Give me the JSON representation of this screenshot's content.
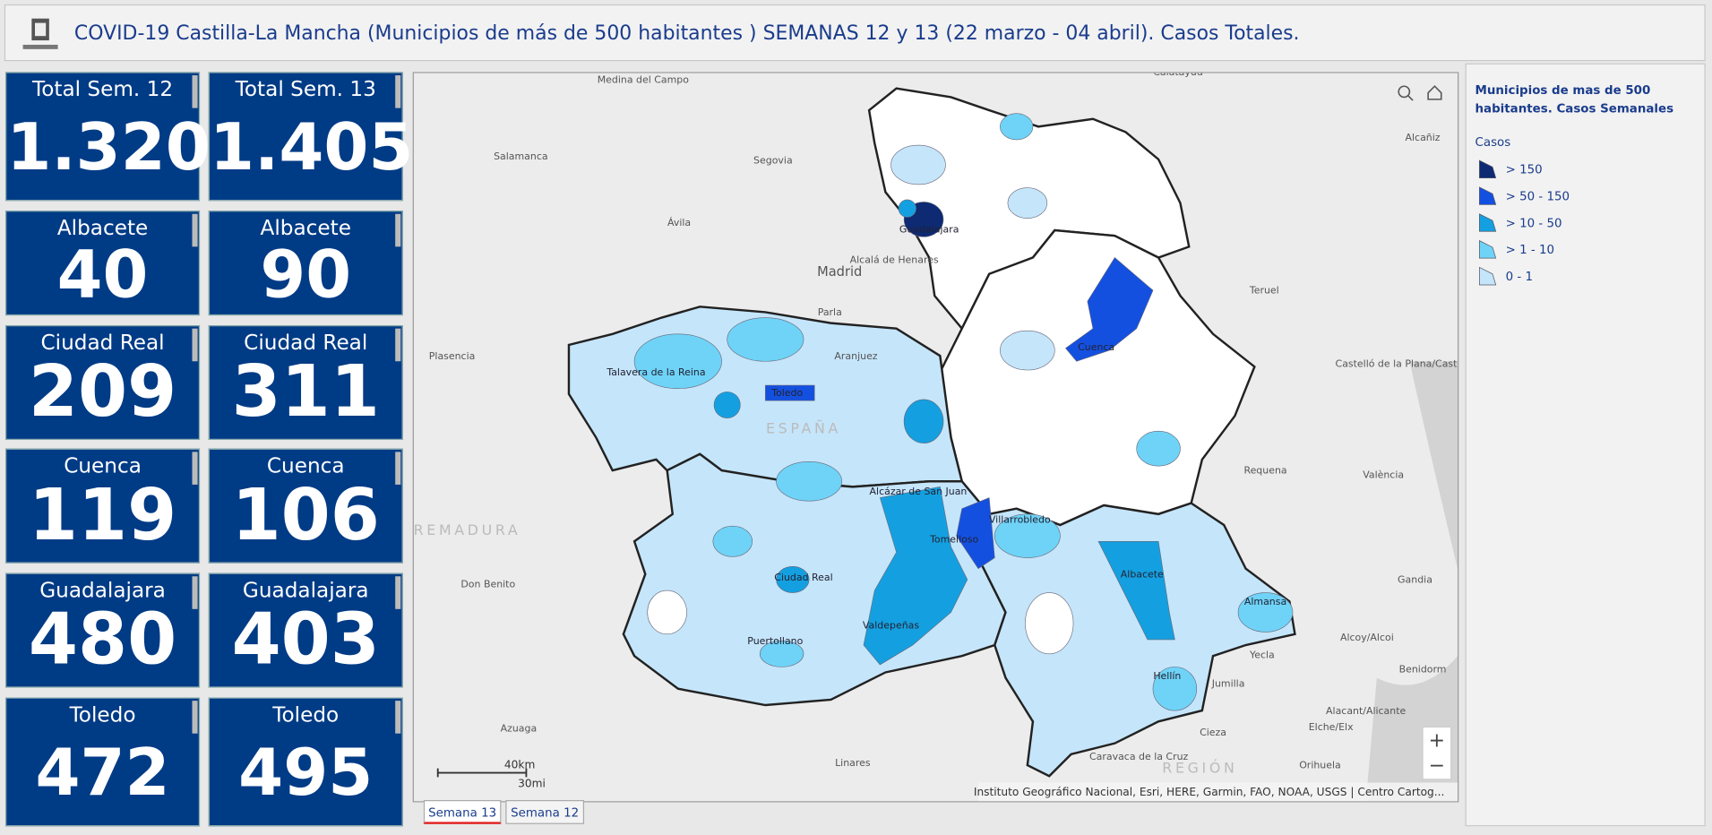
{
  "header": {
    "title": "COVID-19 Castilla-La Mancha (Municipios de más de 500 habitantes ) SEMANAS 12 y 13 (22 marzo - 04 abril). Casos Totales."
  },
  "tiles": {
    "week12": [
      {
        "label": "Total Sem. 12",
        "value": "1.320"
      },
      {
        "label": "Albacete",
        "value": "40"
      },
      {
        "label": "Ciudad Real",
        "value": "209"
      },
      {
        "label": "Cuenca",
        "value": "119"
      },
      {
        "label": "Guadalajara",
        "value": "480"
      },
      {
        "label": "Toledo",
        "value": "472"
      }
    ],
    "week13": [
      {
        "label": "Total Sem. 13",
        "value": "1.405"
      },
      {
        "label": "Albacete",
        "value": "90"
      },
      {
        "label": "Ciudad Real",
        "value": "311"
      },
      {
        "label": "Cuenca",
        "value": "106"
      },
      {
        "label": "Guadalajara",
        "value": "403"
      },
      {
        "label": "Toledo",
        "value": "495"
      }
    ]
  },
  "map": {
    "labels": [
      "Medina del Campo",
      "Calatayud",
      "Salamanca",
      "Segovia",
      "Alcañiz",
      "Ávila",
      "Guadalajara",
      "Madrid",
      "Alcalá de Henares",
      "Teruel",
      "Parla",
      "Aranjuez",
      "Plasencia",
      "Talavera de la Reina",
      "Toledo",
      "Cuenca",
      "Castelló de la Plana/Castelló de la Plana",
      "ESPAÑA",
      "Requena",
      "València",
      "Alcázar de San Juan",
      "Villarrobledo",
      "Tomelloso",
      "EXTREMADURA",
      "Albacete",
      "Ciudad Real",
      "Don Benito",
      "Gandia",
      "Almansa",
      "Valdepeñas",
      "Puertollano",
      "Alcoy/Alcoi",
      "Yecla",
      "Benidorm",
      "Hellín",
      "Jumilla",
      "Alacant/Alicante",
      "Elche/Elx",
      "Azuaga",
      "Cieza",
      "Caravaca de la Cruz",
      "Orihuela",
      "Linares",
      "REGIÓN"
    ],
    "scale_km": "40km",
    "scale_mi": "30mi",
    "attribution": "Instituto Geográfico Nacional, Esri, HERE, Garmin, FAO, NOAA, USGS | Centro Cartog...",
    "zoom_in": "+",
    "zoom_out": "−"
  },
  "legend": {
    "title": "Municipios de mas de 500 habitantes. Casos Semanales",
    "subtitle": "Casos",
    "items": [
      {
        "label": "> 150",
        "color": "#0d2a73"
      },
      {
        "label": "> 50 - 150",
        "color": "#1450e0"
      },
      {
        "label": "> 10 - 50",
        "color": "#14a0e0"
      },
      {
        "label": "> 1 - 10",
        "color": "#6fd3f7"
      },
      {
        "label": "0 - 1",
        "color": "#c5e5fa"
      }
    ]
  },
  "tabs": [
    "Semana 13",
    "Semana 12"
  ]
}
